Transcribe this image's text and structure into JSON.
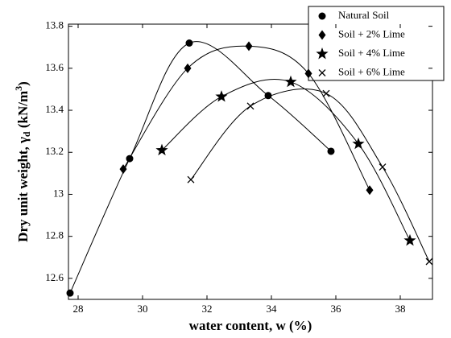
{
  "chart_data": {
    "type": "scatter",
    "xlabel": "water content, w (%)",
    "ylabel": [
      "Dry unit weight, γ",
      "d",
      " (kN/m",
      "3",
      ")"
    ],
    "xlim": [
      27.7,
      39
    ],
    "xticks": [
      28,
      30,
      32,
      34,
      36,
      38
    ],
    "ylim": [
      12.5,
      13.81
    ],
    "yticks": [
      12.6,
      12.8,
      13,
      13.2,
      13.4,
      13.6,
      13.8
    ],
    "legend": "upper right",
    "series": [
      {
        "name": "Natural Soil",
        "color": "#000000",
        "marker": "circle",
        "x": [
          27.75,
          29.6,
          31.45,
          33.9,
          35.85
        ],
        "values": [
          12.53,
          13.17,
          13.72,
          13.47,
          13.205
        ]
      },
      {
        "name": "Soil + 2% Lime",
        "color": "#000000",
        "marker": "diamond",
        "x": [
          29.4,
          31.4,
          33.3,
          35.15,
          37.05
        ],
        "values": [
          13.12,
          13.6,
          13.705,
          13.575,
          13.02
        ]
      },
      {
        "name": "Soil + 4% Lime",
        "color": "#000000",
        "marker": "star",
        "x": [
          30.6,
          32.45,
          34.6,
          36.7,
          38.3
        ],
        "values": [
          13.21,
          13.465,
          13.535,
          13.24,
          12.78
        ]
      },
      {
        "name": "Soil + 6% Lime",
        "color": "#000000",
        "marker": "x",
        "x": [
          31.5,
          33.35,
          35.7,
          37.45,
          38.9
        ],
        "values": [
          13.07,
          13.42,
          13.48,
          13.13,
          12.68
        ]
      }
    ]
  }
}
